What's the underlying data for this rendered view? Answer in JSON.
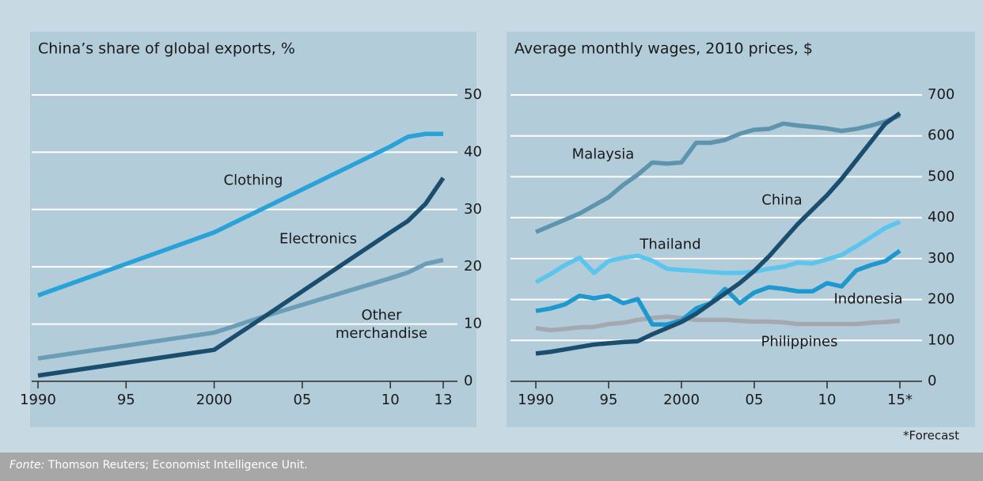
{
  "chart_data": [
    {
      "type": "line",
      "title": "China’s share of global exports, %",
      "x": [
        1990,
        2000,
        2003,
        2010,
        2011,
        2012,
        2013
      ],
      "xlim": [
        1990,
        2013
      ],
      "xticks": [
        1990,
        {
          "value": 1995,
          "label": "95"
        },
        2000,
        {
          "value": 2005,
          "label": "05"
        },
        {
          "value": 2010,
          "label": "10"
        },
        {
          "value": 2013,
          "label": "13"
        }
      ],
      "ylim": [
        0,
        50
      ],
      "yticks": [
        0,
        10,
        20,
        30,
        40,
        50
      ],
      "grid": true,
      "series": [
        {
          "name": "Other merchandise",
          "color": "#6b9db6",
          "values": [
            4,
            8.5,
            11.5,
            18,
            19,
            20.5,
            21.2
          ]
        },
        {
          "name": "Clothing",
          "color": "#29a1d9",
          "values": [
            15,
            26,
            30.5,
            41,
            42.7,
            43.2,
            43.2
          ]
        },
        {
          "name": "Electronics",
          "color": "#1b4e6e",
          "values": [
            1,
            5.5,
            11.6,
            26,
            28,
            31,
            35.5
          ]
        }
      ]
    },
    {
      "type": "line",
      "title": "Average monthly wages, 2010 prices, $",
      "x": [
        1990,
        1991,
        1992,
        1993,
        1994,
        1995,
        1996,
        1997,
        1998,
        1999,
        2000,
        2001,
        2002,
        2003,
        2004,
        2005,
        2006,
        2007,
        2008,
        2009,
        2010,
        2011,
        2012,
        2013,
        2014,
        2015
      ],
      "xlim": [
        1990,
        2015
      ],
      "xticks": [
        1990,
        {
          "value": 1995,
          "label": "95"
        },
        2000,
        {
          "value": 2005,
          "label": "05"
        },
        {
          "value": 2010,
          "label": "10"
        },
        {
          "value": 2015,
          "label": "15*"
        }
      ],
      "ylim": [
        0,
        700
      ],
      "yticks": [
        0,
        100,
        200,
        300,
        400,
        500,
        600,
        700
      ],
      "grid": true,
      "note": "*Forecast",
      "series": [
        {
          "name": "Philippines",
          "color": "#a3a9ae",
          "values": [
            130,
            125,
            128,
            132,
            133,
            140,
            143,
            150,
            155,
            158,
            155,
            150,
            150,
            150,
            148,
            146,
            146,
            144,
            140,
            140,
            140,
            140,
            140,
            143,
            145,
            148
          ]
        },
        {
          "name": "Malaysia",
          "color": "#5e94ae",
          "values": [
            365,
            380,
            395,
            410,
            430,
            450,
            480,
            505,
            535,
            532,
            535,
            583,
            583,
            590,
            605,
            615,
            617,
            630,
            625,
            622,
            618,
            612,
            617,
            625,
            635,
            650
          ]
        },
        {
          "name": "Thailand",
          "color": "#5cc5ee",
          "values": [
            242,
            262,
            284,
            302,
            265,
            294,
            302,
            307,
            295,
            275,
            272,
            270,
            267,
            265,
            265,
            268,
            275,
            280,
            290,
            288,
            298,
            309,
            330,
            352,
            375,
            390
          ]
        },
        {
          "name": "Indonesia",
          "color": "#1f98cf",
          "values": [
            172,
            178,
            188,
            209,
            203,
            209,
            191,
            201,
            139,
            139,
            149,
            178,
            191,
            226,
            191,
            217,
            230,
            226,
            220,
            220,
            240,
            232,
            271,
            284,
            294,
            319
          ]
        },
        {
          "name": "China",
          "color": "#1b4e6e",
          "values": [
            68,
            72,
            78,
            84,
            90,
            93,
            96,
            98,
            115,
            130,
            145,
            165,
            190,
            215,
            240,
            270,
            305,
            345,
            385,
            420,
            455,
            495,
            540,
            585,
            630,
            655
          ]
        }
      ]
    }
  ],
  "source": {
    "label": "Fonte:",
    "text": "Thomson Reuters; Economist Intelligence Unit."
  }
}
